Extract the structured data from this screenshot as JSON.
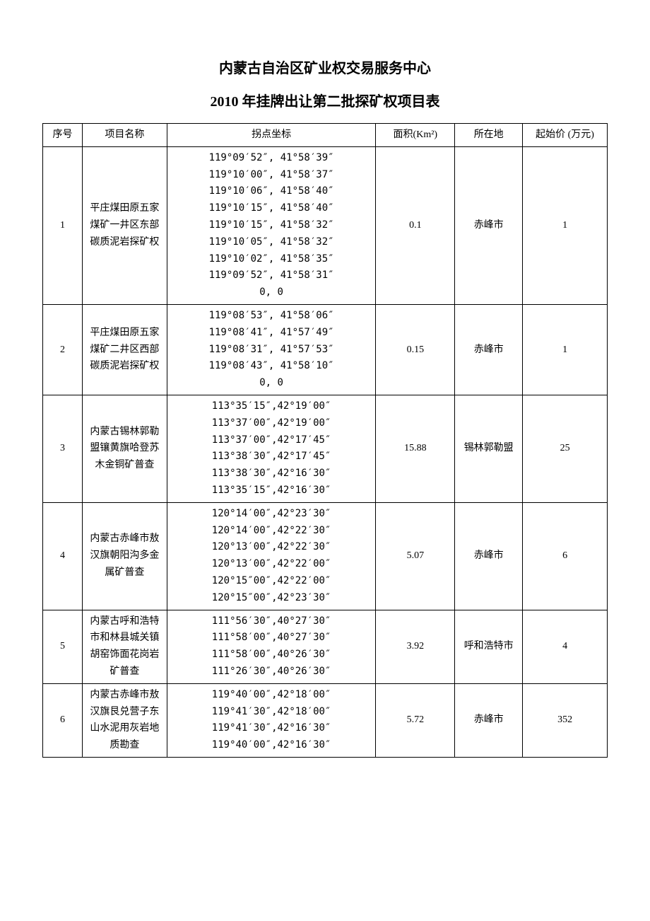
{
  "title1": "内蒙古自治区矿业权交易服务中心",
  "title2": "2010 年挂牌出让第二批探矿权项目表",
  "headers": {
    "seq": "序号",
    "name": "项目名称",
    "coord": "拐点坐标",
    "area": "面积(Km²)",
    "loc": "所在地",
    "price": "起始价 (万元)"
  },
  "rows": [
    {
      "seq": "1",
      "name": "平庄煤田原五家煤矿一井区东部碳质泥岩探矿权",
      "coords": [
        "119°09′52″,  41°58′39″",
        "119°10′00″, 41°58′37″",
        "119°10′06″, 41°58′40″",
        "119°10′15″, 41°58′40″",
        "119°10′15″, 41°58′32″",
        "119°10′05″, 41°58′32″",
        "119°10′02″, 41°58′35″",
        "119°09′52″, 41°58′31″",
        "0, 0"
      ],
      "area": "0.1",
      "loc": "赤峰市",
      "price": "1"
    },
    {
      "seq": "2",
      "name": "平庄煤田原五家煤矿二井区西部碳质泥岩探矿权",
      "coords": [
        "119°08′53″, 41°58′06″",
        "119°08′41″, 41°57′49″",
        "119°08′31″, 41°57′53″",
        "119°08′43″, 41°58′10″",
        "0, 0"
      ],
      "area": "0.15",
      "loc": "赤峰市",
      "price": "1"
    },
    {
      "seq": "3",
      "name": "内蒙古锡林郭勒盟镶黄旗哈登苏木金铜矿普查",
      "coords": [
        "113°35′15″,42°19′00″",
        "113°37′00″,42°19′00″",
        "113°37′00″,42°17′45″",
        "113°38′30″,42°17′45″",
        "113°38′30″,42°16′30″",
        "113°35′15″,42°16′30″"
      ],
      "area": "15.88",
      "loc": "锡林郭勒盟",
      "price": "25"
    },
    {
      "seq": "4",
      "name": "内蒙古赤峰市敖汉旗朝阳沟多金属矿普查",
      "coords": [
        "120°14′00″,42°23′30″",
        "120°14′00″,42°22′30″",
        "120°13′00″,42°22′30″",
        "120°13′00″,42°22′00″",
        "120°15″00″,42°22′00″",
        "120°15″00″,42°23′30″"
      ],
      "area": "5.07",
      "loc": "赤峰市",
      "price": "6"
    },
    {
      "seq": "5",
      "name": "内蒙古呼和浩特市和林县城关镇胡窑饰面花岗岩矿普查",
      "coords": [
        "111°56′30″,40°27′30″",
        "111°58′00″,40°27′30″",
        "111°58′00″,40°26′30″",
        "111°26′30″,40°26′30″"
      ],
      "area": "3.92",
      "loc": "呼和浩特市",
      "price": "4"
    },
    {
      "seq": "6",
      "name": "内蒙古赤峰市敖汉旗艮兑营子东山水泥用灰岩地质勘查",
      "coords": [
        "119°40′00″,42°18′00″",
        "119°41′30″,42°18′00″",
        "119°41′30″,42°16′30″",
        "119°40′00″,42°16′30″"
      ],
      "area": "5.72",
      "loc": "赤峰市",
      "price": "352"
    }
  ]
}
